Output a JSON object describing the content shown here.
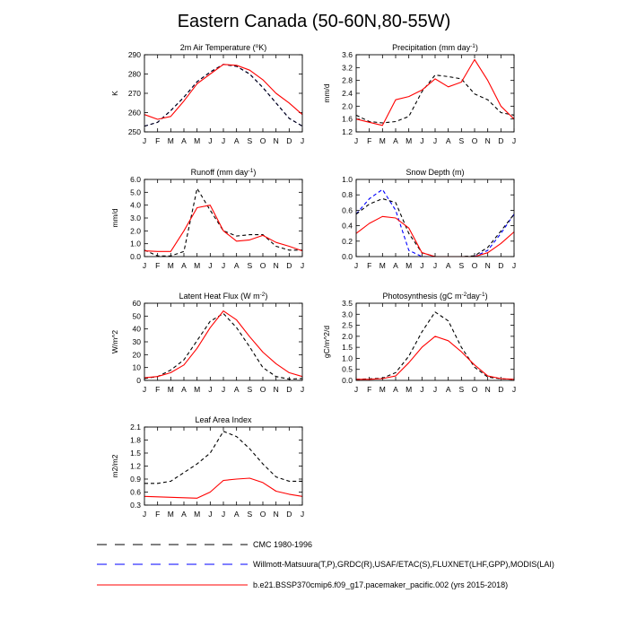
{
  "title": "Eastern Canada (50-60N,80-55W)",
  "months": [
    "J",
    "F",
    "M",
    "A",
    "M",
    "J",
    "J",
    "A",
    "S",
    "O",
    "N",
    "D",
    "J"
  ],
  "series_styles": {
    "cmc": {
      "color": "#000000",
      "dash": "4,3"
    },
    "obs": {
      "color": "#0000ff",
      "dash": "4,3"
    },
    "model": {
      "color": "#ff0000",
      "dash": ""
    }
  },
  "legend": [
    {
      "key": "cmc",
      "label": "CMC 1980-1996"
    },
    {
      "key": "obs",
      "label": "Willmott-Matsuura(T,P),GRDC(R),USAF/ETAC(S),FLUXNET(LHF,GPP),MODIS(LAI)"
    },
    {
      "key": "model",
      "label": "b.e21.BSSP370cmip6.f09_g17.pacemaker_pacific.002 (yrs 2015-2018)"
    }
  ],
  "chart_data": [
    {
      "type": "line",
      "title_main": "2m Air Temperature (",
      "title_sup": "o",
      "title_end": "K)",
      "ylabel": "K",
      "ylim": [
        250,
        290
      ],
      "yticks": [
        250,
        260,
        270,
        280,
        290
      ],
      "ytick_labels": [
        "250",
        "260",
        "270",
        "280",
        "290"
      ],
      "series": [
        {
          "key": "obs",
          "values": [
            253,
            255,
            261,
            268,
            276,
            281,
            285,
            284,
            280,
            273,
            265,
            257,
            253
          ]
        },
        {
          "key": "cmc",
          "values": [
            253,
            255,
            261,
            268,
            276,
            281,
            285,
            284,
            280,
            273,
            265,
            257,
            253
          ]
        },
        {
          "key": "model",
          "values": [
            259,
            256.5,
            258,
            266,
            275,
            280,
            285,
            284.5,
            282,
            277,
            270,
            265,
            259
          ]
        }
      ]
    },
    {
      "type": "line",
      "title_main": "Precipitation (mm day",
      "title_sup": "-1",
      "title_end": ")",
      "ylabel": "mm/d",
      "ylim": [
        1.2,
        3.6
      ],
      "yticks": [
        1.2,
        1.6,
        2.0,
        2.4,
        2.8,
        3.2,
        3.6
      ],
      "ytick_labels": [
        "1.2",
        "1.6",
        "2.0",
        "2.4",
        "2.8",
        "3.2",
        "3.6"
      ],
      "series": [
        {
          "key": "cmc",
          "values": [
            1.72,
            1.52,
            1.48,
            1.52,
            1.68,
            2.45,
            2.97,
            2.92,
            2.85,
            2.38,
            2.2,
            1.8,
            1.72
          ]
        },
        {
          "key": "model",
          "values": [
            1.6,
            1.5,
            1.4,
            2.2,
            2.3,
            2.5,
            2.85,
            2.6,
            2.75,
            3.45,
            2.8,
            2.0,
            1.6
          ]
        }
      ]
    },
    {
      "type": "line",
      "title_main": "Runoff (mm day",
      "title_sup": "-1",
      "title_end": ")",
      "ylabel": "mm/d",
      "ylim": [
        0,
        6
      ],
      "yticks": [
        0,
        1,
        2,
        3,
        4,
        5,
        6
      ],
      "ytick_labels": [
        "0.0",
        "1.0",
        "2.0",
        "3.0",
        "4.0",
        "5.0",
        "6.0"
      ],
      "series": [
        {
          "key": "cmc",
          "values": [
            0.5,
            0.05,
            0.05,
            0.4,
            5.3,
            3.6,
            2.0,
            1.6,
            1.7,
            1.7,
            0.8,
            0.5,
            0.5
          ]
        },
        {
          "key": "model",
          "values": [
            0.45,
            0.4,
            0.4,
            2.0,
            3.8,
            4.0,
            2.0,
            1.2,
            1.3,
            1.65,
            1.1,
            0.8,
            0.45
          ]
        }
      ]
    },
    {
      "type": "line",
      "title_main": "Snow Depth (m)",
      "title_sup": "",
      "title_end": "",
      "ylabel": "",
      "ylim": [
        0,
        1
      ],
      "yticks": [
        0,
        0.2,
        0.4,
        0.6,
        0.8,
        1.0
      ],
      "ytick_labels": [
        "0.0",
        "0.2",
        "0.4",
        "0.6",
        "0.8",
        "1.0"
      ],
      "series": [
        {
          "key": "obs",
          "values": [
            0.55,
            0.75,
            0.87,
            0.6,
            0.08,
            0.0,
            0.0,
            0.0,
            0.0,
            0.0,
            0.08,
            0.3,
            0.55
          ]
        },
        {
          "key": "cmc",
          "values": [
            0.55,
            0.68,
            0.75,
            0.7,
            0.3,
            0.05,
            0.0,
            0.0,
            0.0,
            0.01,
            0.12,
            0.33,
            0.55
          ]
        },
        {
          "key": "model",
          "values": [
            0.3,
            0.43,
            0.52,
            0.5,
            0.37,
            0.05,
            0.0,
            0.0,
            0.0,
            0.0,
            0.05,
            0.17,
            0.32
          ]
        }
      ]
    },
    {
      "type": "line",
      "title_main": "Latent Heat Flux (W m",
      "title_sup": "-2",
      "title_end": ")",
      "ylabel": "W/m^2",
      "ylim": [
        0,
        60
      ],
      "yticks": [
        0,
        10,
        20,
        30,
        40,
        50,
        60
      ],
      "ytick_labels": [
        "0",
        "10",
        "20",
        "30",
        "40",
        "50",
        "60"
      ],
      "series": [
        {
          "key": "cmc",
          "values": [
            1.5,
            3,
            8,
            16,
            31,
            46,
            52,
            41,
            26,
            10,
            3,
            1,
            1.5
          ]
        },
        {
          "key": "model",
          "values": [
            2,
            3,
            6,
            12,
            25,
            41,
            54,
            47,
            34,
            22,
            13,
            6,
            3
          ]
        }
      ]
    },
    {
      "type": "line",
      "title_main": "Photosynthesis (gC m",
      "title_sup": "-2",
      "title_end": "day",
      "title_sup2": "-1",
      "title_end2": ")",
      "ylabel": "gC/m^2/d",
      "ylim": [
        0,
        3.5
      ],
      "yticks": [
        0,
        0.5,
        1.0,
        1.5,
        2.0,
        2.5,
        3.0,
        3.5
      ],
      "ytick_labels": [
        "0.0",
        "0.5",
        "1.0",
        "1.5",
        "2.0",
        "2.5",
        "3.0",
        "3.5"
      ],
      "series": [
        {
          "key": "cmc",
          "values": [
            0.05,
            0.07,
            0.1,
            0.35,
            1.1,
            2.2,
            3.1,
            2.7,
            1.5,
            0.6,
            0.15,
            0.07,
            0.05
          ]
        },
        {
          "key": "model",
          "values": [
            0.05,
            0.05,
            0.08,
            0.2,
            0.8,
            1.5,
            2.0,
            1.8,
            1.3,
            0.7,
            0.2,
            0.08,
            0.05
          ]
        }
      ]
    },
    {
      "type": "line",
      "title_main": "Leaf Area Index",
      "title_sup": "",
      "title_end": "",
      "ylabel": "m2/m2",
      "ylim": [
        0.3,
        2.1
      ],
      "yticks": [
        0.3,
        0.6,
        0.9,
        1.2,
        1.5,
        1.8,
        2.1
      ],
      "ytick_labels": [
        "0.3",
        "0.6",
        "0.9",
        "1.2",
        "1.5",
        "1.8",
        "2.1"
      ],
      "series": [
        {
          "key": "cmc",
          "values": [
            0.8,
            0.8,
            0.85,
            1.05,
            1.25,
            1.5,
            2.0,
            1.88,
            1.6,
            1.25,
            0.95,
            0.85,
            0.85
          ]
        },
        {
          "key": "model",
          "values": [
            0.5,
            0.49,
            0.48,
            0.47,
            0.46,
            0.6,
            0.87,
            0.9,
            0.92,
            0.82,
            0.62,
            0.55,
            0.5
          ]
        }
      ]
    }
  ]
}
